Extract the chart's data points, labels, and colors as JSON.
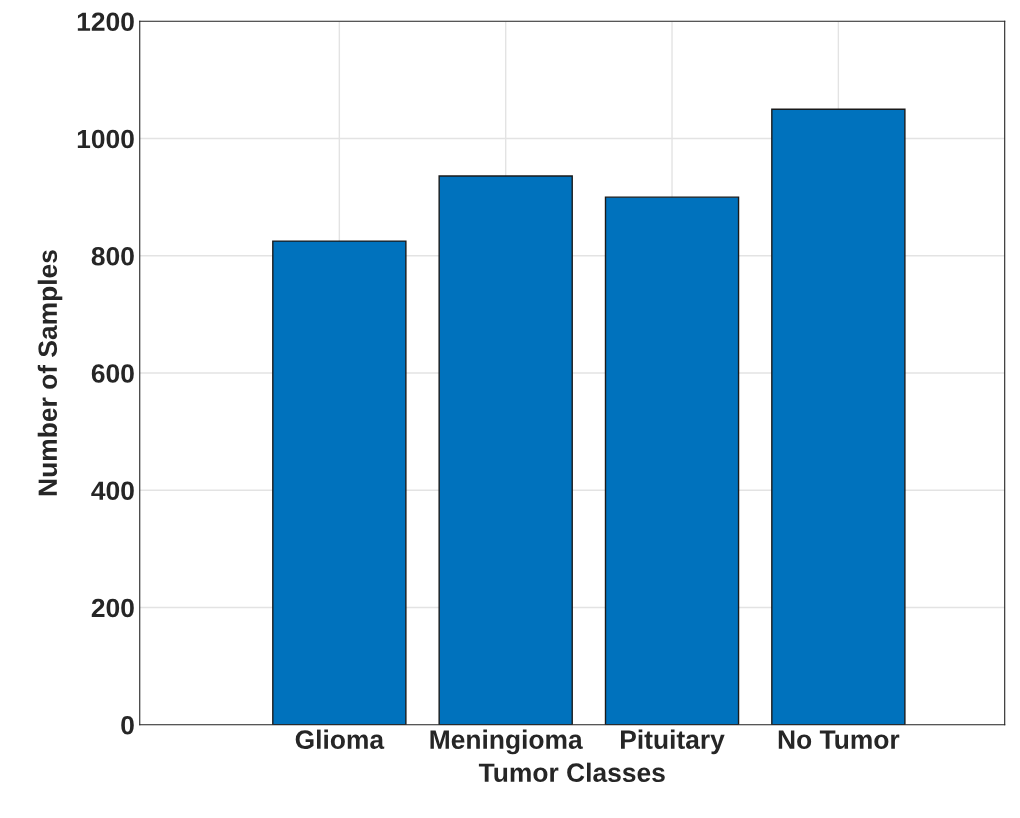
{
  "chart_data": {
    "type": "bar",
    "xlabel": "Tumor Classes",
    "ylabel": "Number of Samples",
    "categories": [
      "Glioma",
      "Meningioma",
      "Pituitary",
      "No Tumor"
    ],
    "values": [
      825,
      936,
      900,
      1050
    ],
    "color": "#0072bd",
    "ylim": [
      0,
      1200
    ],
    "yticks": [
      0,
      200,
      400,
      600,
      800,
      1000,
      1200
    ],
    "grid": true
  }
}
